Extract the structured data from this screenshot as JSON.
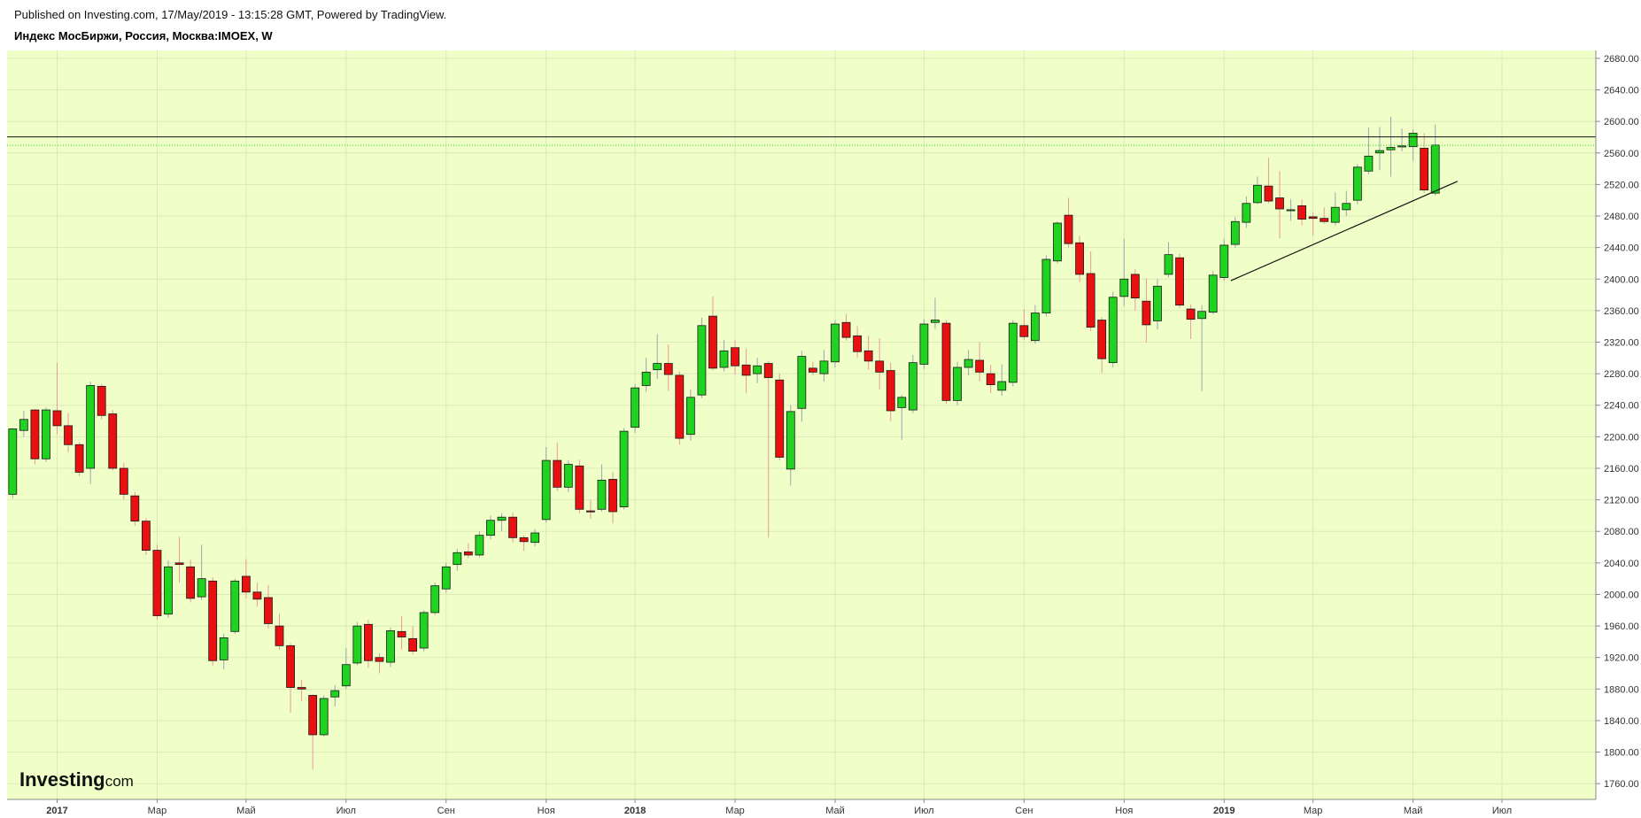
{
  "header": {
    "published": "Published on Investing.com, 17/May/2019 - 13:15:28 GMT, Powered by TradingView.",
    "instrument": "Индекс МосБиржи, Россия, Москва:IMOEX, W"
  },
  "logo": {
    "main": "Investing",
    "suffix": ".com"
  },
  "colors": {
    "plot_bg": "#f0ffc8",
    "grid": "#dde8b8",
    "up": "#21d321",
    "down": "#e81010",
    "wick": "#999999",
    "last_price": "#2bd62b",
    "level_line": "#111111"
  },
  "chart_data": {
    "type": "candlestick",
    "timeframe": "W",
    "ylim": [
      1740,
      2690
    ],
    "y_ticks": [
      1760,
      1800,
      1840,
      1880,
      1920,
      1960,
      2000,
      2040,
      2080,
      2120,
      2160,
      2200,
      2240,
      2280,
      2320,
      2360,
      2400,
      2440,
      2480,
      2520,
      2560,
      2600,
      2640,
      2680
    ],
    "y_tick_labels": [
      "1760.00",
      "1800.00",
      "1840.00",
      "1880.00",
      "1920.00",
      "1960.00",
      "2000.00",
      "2040.00",
      "2080.00",
      "2120.00",
      "2160.00",
      "2200.00",
      "2240.00",
      "2280.00",
      "2320.00",
      "2360.00",
      "2400.00",
      "2440.00",
      "2480.00",
      "2520.00",
      "2560.00",
      "2600.00",
      "2640.00",
      "2680.00"
    ],
    "x_ticks": [
      {
        "bar": 4,
        "label": "2017",
        "bold": true
      },
      {
        "bar": 13,
        "label": "Мар",
        "bold": false
      },
      {
        "bar": 21,
        "label": "Май",
        "bold": false
      },
      {
        "bar": 30,
        "label": "Июл",
        "bold": false
      },
      {
        "bar": 39,
        "label": "Сен",
        "bold": false
      },
      {
        "bar": 48,
        "label": "Ноя",
        "bold": false
      },
      {
        "bar": 56,
        "label": "2018",
        "bold": true
      },
      {
        "bar": 65,
        "label": "Мар",
        "bold": false
      },
      {
        "bar": 74,
        "label": "Май",
        "bold": false
      },
      {
        "bar": 82,
        "label": "Июл",
        "bold": false
      },
      {
        "bar": 91,
        "label": "Сен",
        "bold": false
      },
      {
        "bar": 100,
        "label": "Ноя",
        "bold": false
      },
      {
        "bar": 109,
        "label": "2019",
        "bold": true
      },
      {
        "bar": 117,
        "label": "Мар",
        "bold": false
      },
      {
        "bar": 126,
        "label": "Май",
        "bold": false
      },
      {
        "bar": 134,
        "label": "Июл",
        "bold": false
      }
    ],
    "candles": [
      [
        2127,
        2210,
        2122,
        2211
      ],
      [
        2208,
        2222,
        2200,
        2233
      ],
      [
        2234,
        2172,
        2165,
        2235
      ],
      [
        2172,
        2234,
        2168,
        2237
      ],
      [
        2233,
        2214,
        2203,
        2294
      ],
      [
        2214,
        2190,
        2180,
        2230
      ],
      [
        2190,
        2155,
        2150,
        2193
      ],
      [
        2160,
        2265,
        2140,
        2270
      ],
      [
        2264,
        2227,
        2222,
        2267
      ],
      [
        2229,
        2160,
        2157,
        2234
      ],
      [
        2160,
        2127,
        2120,
        2167
      ],
      [
        2125,
        2093,
        2087,
        2130
      ],
      [
        2093,
        2056,
        2050,
        2097
      ],
      [
        2056,
        1973,
        1968,
        2063
      ],
      [
        1975,
        2035,
        1970,
        2043
      ],
      [
        2040,
        2038,
        2015,
        2073
      ],
      [
        2035,
        1995,
        1990,
        2044
      ],
      [
        1997,
        2020,
        1993,
        2063
      ],
      [
        2017,
        1916,
        1910,
        2022
      ],
      [
        1917,
        1945,
        1905,
        1950
      ],
      [
        1953,
        2017,
        1950,
        2020
      ],
      [
        2023,
        2003,
        1995,
        2045
      ],
      [
        2003,
        1994,
        1985,
        2015
      ],
      [
        1996,
        1963,
        1957,
        2012
      ],
      [
        1960,
        1935,
        1930,
        1975
      ],
      [
        1935,
        1882,
        1850,
        1938
      ],
      [
        1882,
        1880,
        1865,
        1892
      ],
      [
        1872,
        1822,
        1778,
        1873
      ],
      [
        1822,
        1868,
        1820,
        1872
      ],
      [
        1870,
        1878,
        1858,
        1885
      ],
      [
        1884,
        1911,
        1880,
        1932
      ],
      [
        1913,
        1960,
        1910,
        1965
      ],
      [
        1962,
        1916,
        1907,
        1968
      ],
      [
        1920,
        1915,
        1900,
        1925
      ],
      [
        1914,
        1954,
        1908,
        1958
      ],
      [
        1953,
        1946,
        1930,
        1972
      ],
      [
        1944,
        1928,
        1924,
        1960
      ],
      [
        1932,
        1977,
        1928,
        1980
      ],
      [
        1977,
        2011,
        1974,
        2015
      ],
      [
        2007,
        2035,
        2002,
        2040
      ],
      [
        2038,
        2053,
        2030,
        2058
      ],
      [
        2054,
        2050,
        2046,
        2065
      ],
      [
        2050,
        2075,
        2047,
        2080
      ],
      [
        2075,
        2094,
        2070,
        2100
      ],
      [
        2094,
        2098,
        2080,
        2103
      ],
      [
        2098,
        2072,
        2066,
        2104
      ],
      [
        2072,
        2067,
        2055,
        2075
      ],
      [
        2066,
        2078,
        2061,
        2083
      ],
      [
        2095,
        2170,
        2091,
        2187
      ],
      [
        2170,
        2136,
        2131,
        2193
      ],
      [
        2136,
        2165,
        2130,
        2170
      ],
      [
        2163,
        2108,
        2103,
        2171
      ],
      [
        2106,
        2105,
        2096,
        2120
      ],
      [
        2108,
        2145,
        2105,
        2165
      ],
      [
        2146,
        2105,
        2090,
        2155
      ],
      [
        2111,
        2207,
        2108,
        2211
      ],
      [
        2212,
        2262,
        2205,
        2267
      ],
      [
        2265,
        2282,
        2257,
        2300
      ],
      [
        2285,
        2293,
        2273,
        2330
      ],
      [
        2293,
        2279,
        2258,
        2317
      ],
      [
        2278,
        2198,
        2190,
        2283
      ],
      [
        2203,
        2250,
        2195,
        2260
      ],
      [
        2253,
        2341,
        2249,
        2351
      ],
      [
        2353,
        2287,
        2284,
        2378
      ],
      [
        2288,
        2309,
        2283,
        2323
      ],
      [
        2313,
        2290,
        2279,
        2323
      ],
      [
        2291,
        2278,
        2255,
        2312
      ],
      [
        2280,
        2290,
        2268,
        2300
      ],
      [
        2293,
        2275,
        2072,
        2296
      ],
      [
        2272,
        2174,
        2170,
        2280
      ],
      [
        2159,
        2232,
        2138,
        2240
      ],
      [
        2236,
        2302,
        2219,
        2309
      ],
      [
        2287,
        2282,
        2278,
        2295
      ],
      [
        2280,
        2296,
        2270,
        2310
      ],
      [
        2295,
        2343,
        2288,
        2348
      ],
      [
        2345,
        2326,
        2322,
        2356
      ],
      [
        2328,
        2308,
        2300,
        2340
      ],
      [
        2309,
        2296,
        2285,
        2328
      ],
      [
        2296,
        2282,
        2260,
        2325
      ],
      [
        2284,
        2233,
        2220,
        2294
      ],
      [
        2237,
        2250,
        2196,
        2253
      ],
      [
        2234,
        2294,
        2230,
        2304
      ],
      [
        2292,
        2343,
        2286,
        2349
      ],
      [
        2345,
        2348,
        2337,
        2376
      ],
      [
        2344,
        2246,
        2242,
        2348
      ],
      [
        2246,
        2288,
        2240,
        2295
      ],
      [
        2288,
        2298,
        2278,
        2310
      ],
      [
        2297,
        2282,
        2270,
        2320
      ],
      [
        2280,
        2266,
        2255,
        2291
      ],
      [
        2259,
        2270,
        2252,
        2292
      ],
      [
        2269,
        2344,
        2264,
        2348
      ],
      [
        2341,
        2327,
        2323,
        2362
      ],
      [
        2322,
        2357,
        2318,
        2367
      ],
      [
        2357,
        2425,
        2353,
        2430
      ],
      [
        2423,
        2471,
        2420,
        2473
      ],
      [
        2481,
        2445,
        2440,
        2503
      ],
      [
        2446,
        2406,
        2396,
        2455
      ],
      [
        2407,
        2339,
        2334,
        2435
      ],
      [
        2348,
        2299,
        2281,
        2352
      ],
      [
        2294,
        2377,
        2288,
        2384
      ],
      [
        2378,
        2400,
        2366,
        2451
      ],
      [
        2406,
        2376,
        2360,
        2413
      ],
      [
        2372,
        2342,
        2320,
        2401
      ],
      [
        2347,
        2391,
        2336,
        2400
      ],
      [
        2406,
        2431,
        2402,
        2447
      ],
      [
        2427,
        2367,
        2363,
        2432
      ],
      [
        2362,
        2349,
        2324,
        2368
      ],
      [
        2350,
        2359,
        2258,
        2367
      ],
      [
        2358,
        2405,
        2355,
        2410
      ],
      [
        2402,
        2443,
        2398,
        2451
      ],
      [
        2444,
        2473,
        2440,
        2479
      ],
      [
        2472,
        2496,
        2465,
        2505
      ],
      [
        2497,
        2519,
        2495,
        2530
      ],
      [
        2518,
        2499,
        2496,
        2554
      ],
      [
        2503,
        2489,
        2452,
        2537
      ],
      [
        2488,
        2488,
        2474,
        2501
      ],
      [
        2493,
        2476,
        2468,
        2501
      ],
      [
        2479,
        2477,
        2455,
        2485
      ],
      [
        2477,
        2473,
        2470,
        2491
      ],
      [
        2472,
        2491,
        2468,
        2510
      ],
      [
        2488,
        2496,
        2480,
        2512
      ],
      [
        2500,
        2542,
        2495,
        2546
      ],
      [
        2537,
        2556,
        2533,
        2592
      ],
      [
        2560,
        2563,
        2538,
        2593
      ],
      [
        2564,
        2567,
        2530,
        2606
      ],
      [
        2568,
        2569,
        2562,
        2591
      ],
      [
        2568,
        2585,
        2550,
        2590
      ],
      [
        2566,
        2513,
        2509,
        2585
      ],
      [
        2509,
        2570,
        2506,
        2596
      ]
    ],
    "price_lines": [
      {
        "value": 2580.35,
        "label": "2580.35",
        "style": "solid"
      },
      {
        "value": 2569.77,
        "label": "2569.77",
        "style": "dotted"
      }
    ],
    "trendline": {
      "from": {
        "bar": 109.6,
        "value": 2398
      },
      "to": {
        "bar": 130,
        "value": 2524
      }
    }
  }
}
